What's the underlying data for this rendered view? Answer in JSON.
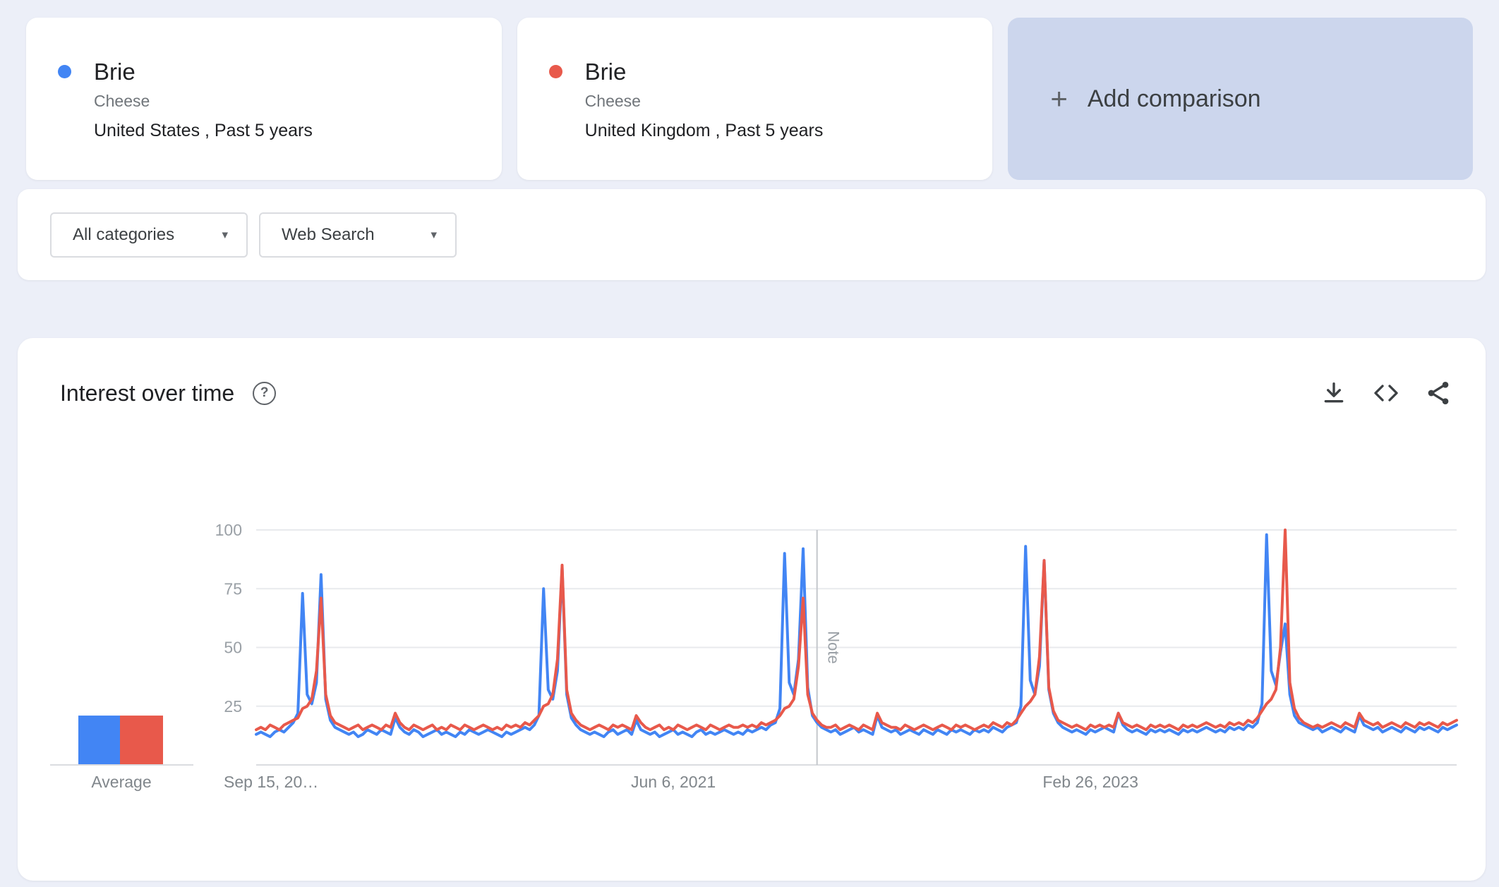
{
  "comparison": {
    "terms": [
      {
        "term": "Brie",
        "topic": "Cheese",
        "scope": "United States , Past 5 years",
        "color": "#4285f4"
      },
      {
        "term": "Brie",
        "topic": "Cheese",
        "scope": "United Kingdom , Past 5 years",
        "color": "#e8594b"
      }
    ],
    "add_label": "Add comparison"
  },
  "filters": {
    "category": "All categories",
    "search_type": "Web Search"
  },
  "icons": {
    "caret": "▾",
    "plus": "+",
    "help": "?"
  },
  "chart_card": {
    "title": "Interest over time"
  },
  "chart_data": {
    "type": "line",
    "title": "Interest over time",
    "ylim": [
      0,
      100
    ],
    "y_ticks": [
      25,
      50,
      75,
      100
    ],
    "grid": true,
    "x_tick_labels": [
      {
        "label": "Sep 15, 20…",
        "week": 0
      },
      {
        "label": "Jun 6, 2021",
        "week": 90
      },
      {
        "label": "Feb 26, 2023",
        "week": 180
      }
    ],
    "note_label": "Note",
    "note_week": 121,
    "series": [
      {
        "name": "Brie (United States)",
        "color": "#4285f4",
        "values": [
          13,
          14,
          13,
          12,
          14,
          15,
          14,
          16,
          18,
          22,
          73,
          30,
          26,
          35,
          81,
          28,
          19,
          16,
          15,
          14,
          13,
          14,
          12,
          13,
          15,
          14,
          13,
          15,
          14,
          13,
          20,
          16,
          14,
          13,
          15,
          14,
          12,
          13,
          14,
          15,
          13,
          14,
          13,
          12,
          14,
          13,
          15,
          14,
          13,
          14,
          15,
          14,
          13,
          12,
          14,
          13,
          14,
          15,
          16,
          15,
          17,
          21,
          75,
          32,
          28,
          40,
          84,
          30,
          20,
          17,
          15,
          14,
          13,
          14,
          13,
          12,
          14,
          15,
          13,
          14,
          15,
          13,
          19,
          15,
          14,
          13,
          14,
          12,
          13,
          14,
          15,
          13,
          14,
          13,
          12,
          14,
          15,
          13,
          14,
          13,
          14,
          15,
          14,
          13,
          14,
          13,
          15,
          14,
          15,
          16,
          15,
          17,
          18,
          24,
          90,
          35,
          30,
          45,
          92,
          33,
          21,
          18,
          16,
          15,
          14,
          15,
          13,
          14,
          15,
          16,
          14,
          15,
          14,
          13,
          21,
          16,
          15,
          14,
          15,
          13,
          14,
          15,
          14,
          13,
          15,
          14,
          13,
          15,
          14,
          13,
          15,
          14,
          15,
          14,
          13,
          15,
          14,
          15,
          14,
          16,
          15,
          14,
          16,
          17,
          18,
          25,
          93,
          36,
          30,
          42,
          87,
          32,
          22,
          18,
          16,
          15,
          14,
          15,
          14,
          13,
          15,
          14,
          15,
          16,
          15,
          14,
          22,
          17,
          15,
          14,
          15,
          14,
          13,
          15,
          14,
          15,
          14,
          15,
          14,
          13,
          15,
          14,
          15,
          14,
          15,
          16,
          15,
          14,
          15,
          14,
          16,
          15,
          16,
          15,
          17,
          16,
          18,
          26,
          98,
          40,
          34,
          48,
          60,
          30,
          21,
          18,
          17,
          16,
          15,
          16,
          14,
          15,
          16,
          15,
          14,
          16,
          15,
          14,
          21,
          17,
          16,
          15,
          16,
          14,
          15,
          16,
          15,
          14,
          16,
          15,
          14,
          16,
          15,
          16,
          15,
          14,
          16,
          15,
          16,
          17
        ]
      },
      {
        "name": "Brie (United Kingdom)",
        "color": "#e8594b",
        "values": [
          15,
          16,
          15,
          17,
          16,
          15,
          17,
          18,
          19,
          20,
          24,
          25,
          28,
          40,
          71,
          30,
          21,
          18,
          17,
          16,
          15,
          16,
          17,
          15,
          16,
          17,
          16,
          15,
          17,
          16,
          22,
          18,
          16,
          15,
          17,
          16,
          15,
          16,
          17,
          15,
          16,
          15,
          17,
          16,
          15,
          17,
          16,
          15,
          16,
          17,
          16,
          15,
          16,
          15,
          17,
          16,
          17,
          16,
          18,
          17,
          19,
          21,
          25,
          26,
          30,
          45,
          85,
          32,
          22,
          19,
          17,
          16,
          15,
          16,
          17,
          16,
          15,
          17,
          16,
          17,
          16,
          15,
          21,
          18,
          16,
          15,
          16,
          17,
          15,
          16,
          15,
          17,
          16,
          15,
          16,
          17,
          16,
          15,
          17,
          16,
          15,
          16,
          17,
          16,
          16,
          17,
          16,
          17,
          16,
          18,
          17,
          18,
          19,
          21,
          24,
          25,
          28,
          42,
          71,
          30,
          22,
          19,
          17,
          16,
          16,
          17,
          15,
          16,
          17,
          16,
          15,
          17,
          16,
          15,
          22,
          18,
          17,
          16,
          16,
          15,
          17,
          16,
          15,
          16,
          17,
          16,
          15,
          16,
          17,
          16,
          15,
          17,
          16,
          17,
          16,
          15,
          16,
          17,
          16,
          18,
          17,
          16,
          18,
          17,
          19,
          22,
          25,
          27,
          30,
          46,
          87,
          33,
          23,
          19,
          18,
          17,
          16,
          17,
          16,
          15,
          17,
          16,
          17,
          16,
          17,
          16,
          22,
          18,
          17,
          16,
          17,
          16,
          15,
          17,
          16,
          17,
          16,
          17,
          16,
          15,
          17,
          16,
          17,
          16,
          17,
          18,
          17,
          16,
          17,
          16,
          18,
          17,
          18,
          17,
          19,
          18,
          20,
          23,
          26,
          28,
          32,
          50,
          100,
          35,
          24,
          20,
          18,
          17,
          16,
          17,
          16,
          17,
          18,
          17,
          16,
          18,
          17,
          16,
          22,
          19,
          18,
          17,
          18,
          16,
          17,
          18,
          17,
          16,
          18,
          17,
          16,
          18,
          17,
          18,
          17,
          16,
          18,
          17,
          18,
          19
        ]
      }
    ],
    "average": {
      "label": "Average",
      "values": [
        {
          "name": "United States",
          "value": 21,
          "color": "#4285f4"
        },
        {
          "name": "United Kingdom",
          "value": 21,
          "color": "#e8594b"
        }
      ]
    }
  }
}
